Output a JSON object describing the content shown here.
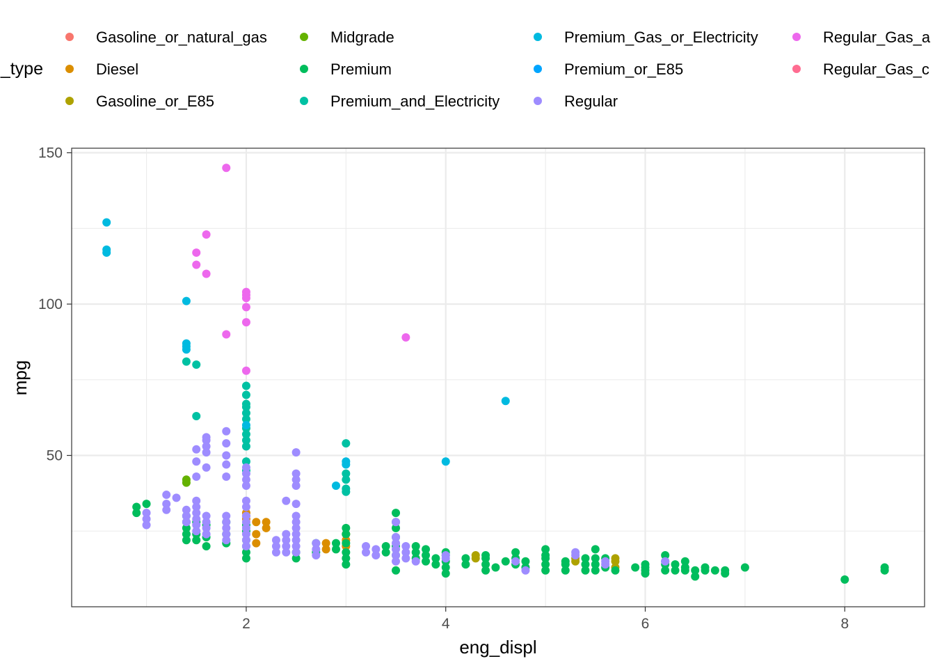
{
  "chart_data": {
    "type": "scatter",
    "xlabel": "eng_displ",
    "ylabel": "mpg",
    "legend_title": "_type",
    "legend_position": "top",
    "grid": true,
    "xlim": [
      0.25,
      8.8
    ],
    "ylim": [
      0,
      151.5
    ],
    "x_ticks": [
      2,
      4,
      6,
      8
    ],
    "x_tick_labels": [
      "2",
      "4",
      "6",
      "8"
    ],
    "y_ticks": [
      50,
      100,
      150
    ],
    "y_tick_labels": [
      "50",
      "100",
      "150"
    ],
    "series": [
      {
        "name": "Gasoline_or_natural_gas",
        "color": "#F8766D",
        "points": []
      },
      {
        "name": "Diesel",
        "color": "#DB8E00",
        "points": [
          [
            2.0,
            29
          ],
          [
            2.0,
            30
          ],
          [
            2.0,
            31
          ],
          [
            2.1,
            21
          ],
          [
            2.1,
            24
          ],
          [
            2.1,
            28
          ],
          [
            2.2,
            26
          ],
          [
            2.2,
            28
          ],
          [
            2.8,
            19
          ],
          [
            2.8,
            21
          ],
          [
            3.0,
            20
          ],
          [
            3.0,
            22
          ],
          [
            3.0,
            24
          ]
        ]
      },
      {
        "name": "Gasoline_or_E85",
        "color": "#AEA200",
        "points": [
          [
            4.3,
            16
          ],
          [
            4.3,
            17
          ],
          [
            5.3,
            15
          ],
          [
            5.3,
            16
          ],
          [
            5.7,
            13
          ],
          [
            5.7,
            15
          ],
          [
            5.7,
            16
          ]
        ]
      },
      {
        "name": "Midgrade",
        "color": "#64B200",
        "points": [
          [
            1.4,
            41
          ],
          [
            1.4,
            42
          ]
        ]
      },
      {
        "name": "Premium",
        "color": "#00BD5C",
        "points": [
          [
            0.9,
            31
          ],
          [
            0.9,
            33
          ],
          [
            1.0,
            34
          ],
          [
            1.4,
            22
          ],
          [
            1.4,
            24
          ],
          [
            1.4,
            26
          ],
          [
            1.4,
            28
          ],
          [
            1.4,
            30
          ],
          [
            1.5,
            22
          ],
          [
            1.5,
            24
          ],
          [
            1.5,
            28
          ],
          [
            1.6,
            20
          ],
          [
            1.6,
            23
          ],
          [
            1.6,
            27
          ],
          [
            1.8,
            21
          ],
          [
            1.8,
            24
          ],
          [
            1.8,
            28
          ],
          [
            2.0,
            16
          ],
          [
            2.0,
            18
          ],
          [
            2.0,
            20
          ],
          [
            2.0,
            22
          ],
          [
            2.0,
            25
          ],
          [
            2.0,
            27
          ],
          [
            2.5,
            16
          ],
          [
            2.5,
            18
          ],
          [
            2.7,
            18
          ],
          [
            2.7,
            21
          ],
          [
            2.9,
            19
          ],
          [
            2.9,
            21
          ],
          [
            3.0,
            14
          ],
          [
            3.0,
            16
          ],
          [
            3.0,
            18
          ],
          [
            3.0,
            21
          ],
          [
            3.0,
            24
          ],
          [
            3.0,
            26
          ],
          [
            3.4,
            18
          ],
          [
            3.4,
            20
          ],
          [
            3.5,
            12
          ],
          [
            3.5,
            17
          ],
          [
            3.5,
            20
          ],
          [
            3.5,
            23
          ],
          [
            3.5,
            26
          ],
          [
            3.5,
            28
          ],
          [
            3.5,
            31
          ],
          [
            3.7,
            16
          ],
          [
            3.7,
            18
          ],
          [
            3.7,
            20
          ],
          [
            3.8,
            15
          ],
          [
            3.8,
            17
          ],
          [
            3.8,
            19
          ],
          [
            3.9,
            14
          ],
          [
            3.9,
            16
          ],
          [
            4.0,
            11
          ],
          [
            4.0,
            13
          ],
          [
            4.0,
            15
          ],
          [
            4.0,
            17
          ],
          [
            4.0,
            18
          ],
          [
            4.2,
            14
          ],
          [
            4.2,
            16
          ],
          [
            4.4,
            12
          ],
          [
            4.4,
            14
          ],
          [
            4.4,
            16
          ],
          [
            4.4,
            17
          ],
          [
            4.5,
            13
          ],
          [
            4.6,
            15
          ],
          [
            4.7,
            14
          ],
          [
            4.7,
            16
          ],
          [
            4.7,
            18
          ],
          [
            4.8,
            13
          ],
          [
            4.8,
            15
          ],
          [
            5.0,
            12
          ],
          [
            5.0,
            14
          ],
          [
            5.0,
            16
          ],
          [
            5.0,
            17
          ],
          [
            5.0,
            19
          ],
          [
            5.2,
            12
          ],
          [
            5.2,
            14
          ],
          [
            5.2,
            15
          ],
          [
            5.4,
            12
          ],
          [
            5.4,
            14
          ],
          [
            5.4,
            16
          ],
          [
            5.5,
            12
          ],
          [
            5.5,
            14
          ],
          [
            5.5,
            16
          ],
          [
            5.5,
            19
          ],
          [
            5.6,
            13
          ],
          [
            5.6,
            16
          ],
          [
            5.7,
            12
          ],
          [
            5.9,
            13
          ],
          [
            6.0,
            11
          ],
          [
            6.0,
            12
          ],
          [
            6.0,
            13
          ],
          [
            6.0,
            14
          ],
          [
            6.2,
            12
          ],
          [
            6.2,
            14
          ],
          [
            6.2,
            15
          ],
          [
            6.2,
            17
          ],
          [
            6.3,
            12
          ],
          [
            6.3,
            14
          ],
          [
            6.4,
            12
          ],
          [
            6.4,
            13
          ],
          [
            6.4,
            15
          ],
          [
            6.5,
            10
          ],
          [
            6.5,
            12
          ],
          [
            6.6,
            12
          ],
          [
            6.6,
            13
          ],
          [
            6.7,
            12
          ],
          [
            6.8,
            11
          ],
          [
            6.8,
            12
          ],
          [
            7.0,
            13
          ],
          [
            8.0,
            9
          ],
          [
            8.4,
            12
          ],
          [
            8.4,
            13
          ]
        ]
      },
      {
        "name": "Premium_and_Electricity",
        "color": "#00C1A3",
        "points": [
          [
            1.4,
            81
          ],
          [
            1.5,
            63
          ],
          [
            1.5,
            80
          ],
          [
            2.0,
            45
          ],
          [
            2.0,
            48
          ],
          [
            2.0,
            53
          ],
          [
            2.0,
            55
          ],
          [
            2.0,
            57
          ],
          [
            2.0,
            59
          ],
          [
            2.0,
            62
          ],
          [
            2.0,
            64
          ],
          [
            2.0,
            66
          ],
          [
            2.0,
            67
          ],
          [
            2.0,
            70
          ],
          [
            2.0,
            73
          ],
          [
            3.0,
            38
          ],
          [
            3.0,
            39
          ],
          [
            3.0,
            42
          ],
          [
            3.0,
            44
          ],
          [
            3.0,
            54
          ]
        ]
      },
      {
        "name": "Premium_Gas_or_Electricity",
        "color": "#00BAE0",
        "points": [
          [
            0.6,
            117
          ],
          [
            0.6,
            118
          ],
          [
            0.6,
            127
          ],
          [
            1.4,
            85
          ],
          [
            1.4,
            86
          ],
          [
            1.4,
            87
          ],
          [
            1.4,
            101
          ],
          [
            2.0,
            60
          ],
          [
            2.9,
            40
          ],
          [
            3.0,
            47
          ],
          [
            3.0,
            48
          ],
          [
            4.0,
            48
          ],
          [
            4.6,
            68
          ]
        ]
      },
      {
        "name": "Premium_or_E85",
        "color": "#00A5FF",
        "points": []
      },
      {
        "name": "Regular",
        "color": "#9E8CFF",
        "points": [
          [
            1.0,
            27
          ],
          [
            1.0,
            29
          ],
          [
            1.0,
            31
          ],
          [
            1.2,
            32
          ],
          [
            1.2,
            34
          ],
          [
            1.2,
            37
          ],
          [
            1.3,
            36
          ],
          [
            1.4,
            28
          ],
          [
            1.4,
            30
          ],
          [
            1.4,
            32
          ],
          [
            1.5,
            25
          ],
          [
            1.5,
            27
          ],
          [
            1.5,
            29
          ],
          [
            1.5,
            31
          ],
          [
            1.5,
            33
          ],
          [
            1.5,
            35
          ],
          [
            1.5,
            43
          ],
          [
            1.5,
            48
          ],
          [
            1.5,
            52
          ],
          [
            1.6,
            24
          ],
          [
            1.6,
            26
          ],
          [
            1.6,
            28
          ],
          [
            1.6,
            30
          ],
          [
            1.6,
            46
          ],
          [
            1.6,
            51
          ],
          [
            1.6,
            53
          ],
          [
            1.6,
            55
          ],
          [
            1.6,
            56
          ],
          [
            1.8,
            22
          ],
          [
            1.8,
            24
          ],
          [
            1.8,
            26
          ],
          [
            1.8,
            28
          ],
          [
            1.8,
            30
          ],
          [
            1.8,
            43
          ],
          [
            1.8,
            47
          ],
          [
            1.8,
            50
          ],
          [
            1.8,
            54
          ],
          [
            1.8,
            58
          ],
          [
            2.0,
            20
          ],
          [
            2.0,
            22
          ],
          [
            2.0,
            24
          ],
          [
            2.0,
            26
          ],
          [
            2.0,
            28
          ],
          [
            2.0,
            30
          ],
          [
            2.0,
            33
          ],
          [
            2.0,
            35
          ],
          [
            2.0,
            40
          ],
          [
            2.0,
            42
          ],
          [
            2.0,
            44
          ],
          [
            2.0,
            46
          ],
          [
            2.3,
            18
          ],
          [
            2.3,
            20
          ],
          [
            2.3,
            22
          ],
          [
            2.4,
            18
          ],
          [
            2.4,
            20
          ],
          [
            2.4,
            22
          ],
          [
            2.4,
            24
          ],
          [
            2.4,
            35
          ],
          [
            2.5,
            18
          ],
          [
            2.5,
            20
          ],
          [
            2.5,
            22
          ],
          [
            2.5,
            24
          ],
          [
            2.5,
            26
          ],
          [
            2.5,
            28
          ],
          [
            2.5,
            30
          ],
          [
            2.5,
            34
          ],
          [
            2.5,
            40
          ],
          [
            2.5,
            42
          ],
          [
            2.5,
            44
          ],
          [
            2.5,
            51
          ],
          [
            2.7,
            17
          ],
          [
            2.7,
            19
          ],
          [
            2.7,
            21
          ],
          [
            3.2,
            18
          ],
          [
            3.2,
            20
          ],
          [
            3.3,
            17
          ],
          [
            3.3,
            19
          ],
          [
            3.5,
            15
          ],
          [
            3.5,
            17
          ],
          [
            3.5,
            19
          ],
          [
            3.5,
            21
          ],
          [
            3.5,
            23
          ],
          [
            3.5,
            28
          ],
          [
            3.6,
            16
          ],
          [
            3.6,
            18
          ],
          [
            3.6,
            20
          ],
          [
            3.7,
            15
          ],
          [
            4.0,
            16
          ],
          [
            4.0,
            17
          ],
          [
            4.7,
            15
          ],
          [
            4.8,
            12
          ],
          [
            5.3,
            17
          ],
          [
            5.3,
            18
          ],
          [
            5.6,
            14
          ],
          [
            5.6,
            15
          ],
          [
            6.2,
            15
          ]
        ]
      },
      {
        "name": "Regular_Gas_a",
        "color": "#ED68ED",
        "points": [
          [
            1.5,
            113
          ],
          [
            1.5,
            117
          ],
          [
            1.6,
            110
          ],
          [
            1.6,
            123
          ],
          [
            1.8,
            90
          ],
          [
            1.8,
            145
          ],
          [
            2.0,
            78
          ],
          [
            2.0,
            94
          ],
          [
            2.0,
            99
          ],
          [
            2.0,
            102
          ],
          [
            2.0,
            103
          ],
          [
            2.0,
            104
          ],
          [
            3.6,
            89
          ]
        ]
      },
      {
        "name": "Regular_Gas_c",
        "color": "#FF6C91",
        "points": []
      }
    ]
  }
}
